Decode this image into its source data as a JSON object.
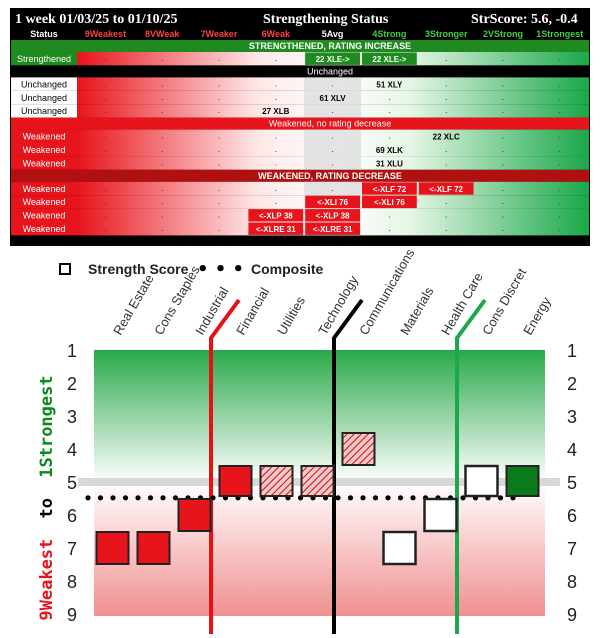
{
  "header": {
    "title": "1 week 01/03/25 to 01/10/25",
    "subtitle": "Strengthening Status",
    "score": "StrScore: 5.6, -0.4"
  },
  "columns": {
    "status": "Status",
    "ratings": [
      "9Weakest",
      "8VWeak",
      "7Weaker",
      "6Weak",
      "5Avg",
      "4Strong",
      "3Stronger",
      "2VStrong",
      "1Strongest"
    ]
  },
  "table": {
    "sections": [
      {
        "title": "STRENGTHENED, RATING INCREASE",
        "color": "#1f8a1f",
        "rows": [
          {
            "status": "Strengthened",
            "cells": [
              {
                "col": 4,
                "text": "22 XLE->",
                "style": "green"
              },
              {
                "col": 5,
                "text": "22 XLE->",
                "style": "green"
              }
            ]
          }
        ]
      },
      {
        "title": "Unchanged",
        "color": "#000000",
        "rows": [
          {
            "status": "Unchanged",
            "cells": [
              {
                "col": 5,
                "text": "51 XLY",
                "style": "plain"
              }
            ]
          },
          {
            "status": "Unchanged",
            "cells": [
              {
                "col": 4,
                "text": "61 XLV",
                "style": "plain"
              }
            ]
          },
          {
            "status": "Unchanged",
            "cells": [
              {
                "col": 3,
                "text": "27 XLB",
                "style": "plain"
              }
            ]
          }
        ]
      },
      {
        "title": "Weakened, no rating decrease",
        "color": "#e8141c",
        "rows": [
          {
            "status": "Weakened",
            "cells": [
              {
                "col": 6,
                "text": "22 XLC",
                "style": "plain"
              }
            ]
          },
          {
            "status": "Weakened",
            "cells": [
              {
                "col": 5,
                "text": "69 XLK",
                "style": "plain"
              }
            ]
          },
          {
            "status": "Weakened",
            "cells": [
              {
                "col": 5,
                "text": "31 XLU",
                "style": "plain"
              }
            ]
          }
        ]
      },
      {
        "title": "WEAKENED, RATING DECREASE",
        "color": "#b01010",
        "rows": [
          {
            "status": "Weakened",
            "cells": [
              {
                "col": 5,
                "text": "<-XLF 72",
                "style": "red"
              },
              {
                "col": 6,
                "text": "<-XLF 72",
                "style": "red"
              }
            ]
          },
          {
            "status": "Weakened",
            "cells": [
              {
                "col": 4,
                "text": "<-XLI 76",
                "style": "red"
              },
              {
                "col": 5,
                "text": "<-XLI 76",
                "style": "red"
              }
            ]
          },
          {
            "status": "Weakened",
            "cells": [
              {
                "col": 3,
                "text": "<-XLP 38",
                "style": "red"
              },
              {
                "col": 4,
                "text": "<-XLP 38",
                "style": "red"
              }
            ]
          },
          {
            "status": "Weakened",
            "cells": [
              {
                "col": 3,
                "text": "<-XLRE 31",
                "style": "red"
              },
              {
                "col": 4,
                "text": "<-XLRE 31",
                "style": "red"
              }
            ]
          }
        ]
      }
    ]
  },
  "chart_data": {
    "type": "scatter",
    "legend": {
      "strength_label": "Strength Score",
      "composite_label": "Composite",
      "dots": "• • •"
    },
    "ylabel_weak": "9Weakest",
    "ylabel_to": "to",
    "ylabel_strong": "1Strongest",
    "y_ticks": [
      1,
      2,
      3,
      4,
      5,
      6,
      7,
      8,
      9
    ],
    "ylim": [
      9,
      1
    ],
    "categories": [
      "Real Estate",
      "Cons Staples",
      "Industrial",
      "Financial",
      "Utilities",
      "Technology",
      "Communications",
      "Materials",
      "Health Care",
      "Cons Discret",
      "Energy"
    ],
    "strength_score": [
      {
        "category": "Real Estate",
        "value": 7,
        "style": "red"
      },
      {
        "category": "Cons Staples",
        "value": 7,
        "style": "red"
      },
      {
        "category": "Industrial",
        "value": 6,
        "style": "red"
      },
      {
        "category": "Financial",
        "value": 5,
        "style": "red"
      },
      {
        "category": "Utilities",
        "value": 5,
        "style": "hatched-red"
      },
      {
        "category": "Technology",
        "value": 5,
        "style": "hatched-red"
      },
      {
        "category": "Communications",
        "value": 4,
        "style": "hatched-red"
      },
      {
        "category": "Materials",
        "value": 7,
        "style": "hollow"
      },
      {
        "category": "Health Care",
        "value": 6,
        "style": "hollow"
      },
      {
        "category": "Cons Discret",
        "value": 5,
        "style": "hollow"
      },
      {
        "category": "Energy",
        "value": 5,
        "style": "green"
      }
    ],
    "composite": 5.6,
    "dividers": [
      {
        "after": "Industrial",
        "color": "#e81010"
      },
      {
        "after": "Technology",
        "color": "#000000"
      },
      {
        "after": "Health Care",
        "color": "#1aa84a"
      }
    ],
    "colors": {
      "red": "#e8141c",
      "green": "#1aa84a",
      "dark_green": "#0a7a1a",
      "hatch_bg": "#f6c8c8"
    }
  }
}
